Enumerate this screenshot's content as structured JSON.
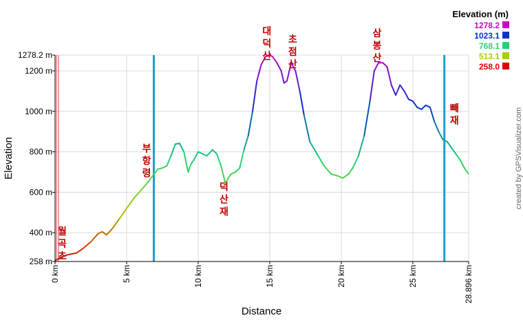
{
  "chart_data": {
    "type": "line",
    "xlabel": "Distance",
    "ylabel": "Elevation",
    "xlim": [
      0,
      28.896
    ],
    "ylim": [
      258,
      1278.2
    ],
    "x_ticks": [
      {
        "value": 0,
        "label": "0 km"
      },
      {
        "value": 5,
        "label": "5 km"
      },
      {
        "value": 10,
        "label": "10 km"
      },
      {
        "value": 15,
        "label": "15 km"
      },
      {
        "value": 20,
        "label": "20 km"
      },
      {
        "value": 25,
        "label": "25 km"
      },
      {
        "value": 28.896,
        "label": "28.896 km"
      }
    ],
    "y_ticks": [
      {
        "value": 258,
        "label": "258 m"
      },
      {
        "value": 400,
        "label": "400 m"
      },
      {
        "value": 600,
        "label": "600 m"
      },
      {
        "value": 800,
        "label": "800 m"
      },
      {
        "value": 1000,
        "label": "1000 m"
      },
      {
        "value": 1200,
        "label": "1200 m"
      },
      {
        "value": 1278.2,
        "label": "1278.2 m"
      }
    ],
    "series": [
      {
        "x": [
          0,
          0.3,
          0.8,
          1.5,
          2.0,
          2.5,
          3.0,
          3.3,
          3.6,
          4.0,
          4.5,
          5.0,
          5.5,
          6.0,
          6.5,
          6.9,
          7.2,
          7.5,
          7.8,
          8.1,
          8.4,
          8.7,
          9.0,
          9.3,
          9.5,
          9.7,
          10.0,
          10.3,
          10.6,
          11.0,
          11.3,
          11.6,
          11.9,
          12.1,
          12.3,
          12.6,
          12.9,
          13.2,
          13.5,
          13.8,
          14.1,
          14.4,
          14.7,
          15.0,
          15.2,
          15.5,
          15.8,
          16.0,
          16.2,
          16.5,
          16.8,
          17.1,
          17.4,
          17.8,
          18.3,
          18.8,
          19.3,
          19.8,
          20.1,
          20.5,
          20.8,
          21.2,
          21.6,
          22.0,
          22.3,
          22.6,
          22.9,
          23.2,
          23.5,
          23.8,
          24.1,
          24.4,
          24.7,
          25.0,
          25.3,
          25.6,
          25.9,
          26.2,
          26.5,
          26.8,
          27.1,
          27.4,
          27.7,
          28.0,
          28.3,
          28.6,
          28.896
        ],
        "y": [
          262,
          275,
          290,
          300,
          325,
          355,
          395,
          405,
          390,
          420,
          470,
          520,
          570,
          610,
          650,
          690,
          715,
          720,
          730,
          780,
          838,
          842,
          800,
          700,
          740,
          760,
          800,
          790,
          780,
          810,
          790,
          730,
          645,
          670,
          690,
          700,
          720,
          810,
          880,
          1000,
          1150,
          1230,
          1270,
          1278,
          1270,
          1240,
          1200,
          1140,
          1150,
          1240,
          1200,
          1100,
          980,
          850,
          790,
          730,
          690,
          680,
          670,
          690,
          720,
          780,
          880,
          1050,
          1200,
          1240,
          1240,
          1220,
          1130,
          1080,
          1130,
          1100,
          1060,
          1050,
          1020,
          1010,
          1030,
          1020,
          950,
          900,
          860,
          850,
          820,
          790,
          760,
          720,
          690
        ]
      }
    ],
    "legend": {
      "title": "Elevation (m)",
      "placement": "top-right",
      "entries": [
        {
          "label": "1278.2",
          "color": "#cc00cc"
        },
        {
          "label": "1023.1",
          "color": "#0033cc"
        },
        {
          "label": "768.1",
          "color": "#1fd47a"
        },
        {
          "label": "513.1",
          "color": "#aacc00"
        },
        {
          "label": "258.0",
          "color": "#dd0000"
        }
      ]
    },
    "markers": [
      {
        "x": 6.9,
        "color": "#1a9fd6"
      },
      {
        "x": 27.2,
        "color": "#1a9fd6"
      }
    ],
    "annotations": [
      {
        "text": "월\n곡\n초",
        "x": 0.5,
        "anchor_value": 390
      },
      {
        "text": "부\n항\n령",
        "x": 6.4,
        "anchor_value": 800
      },
      {
        "text": "덕\n산\n재",
        "x": 11.8,
        "anchor_value": 610
      },
      {
        "text": "대\n덕\n산",
        "x": 14.8,
        "anchor_value": 1380
      },
      {
        "text": "초\n점\n산",
        "x": 16.6,
        "anchor_value": 1340
      },
      {
        "text": "삼\n봉\n산",
        "x": 22.5,
        "anchor_value": 1370
      },
      {
        "text": "빼\n재",
        "x": 27.9,
        "anchor_value": 1000
      }
    ],
    "credit": "created by GPSVisualizer.com"
  }
}
